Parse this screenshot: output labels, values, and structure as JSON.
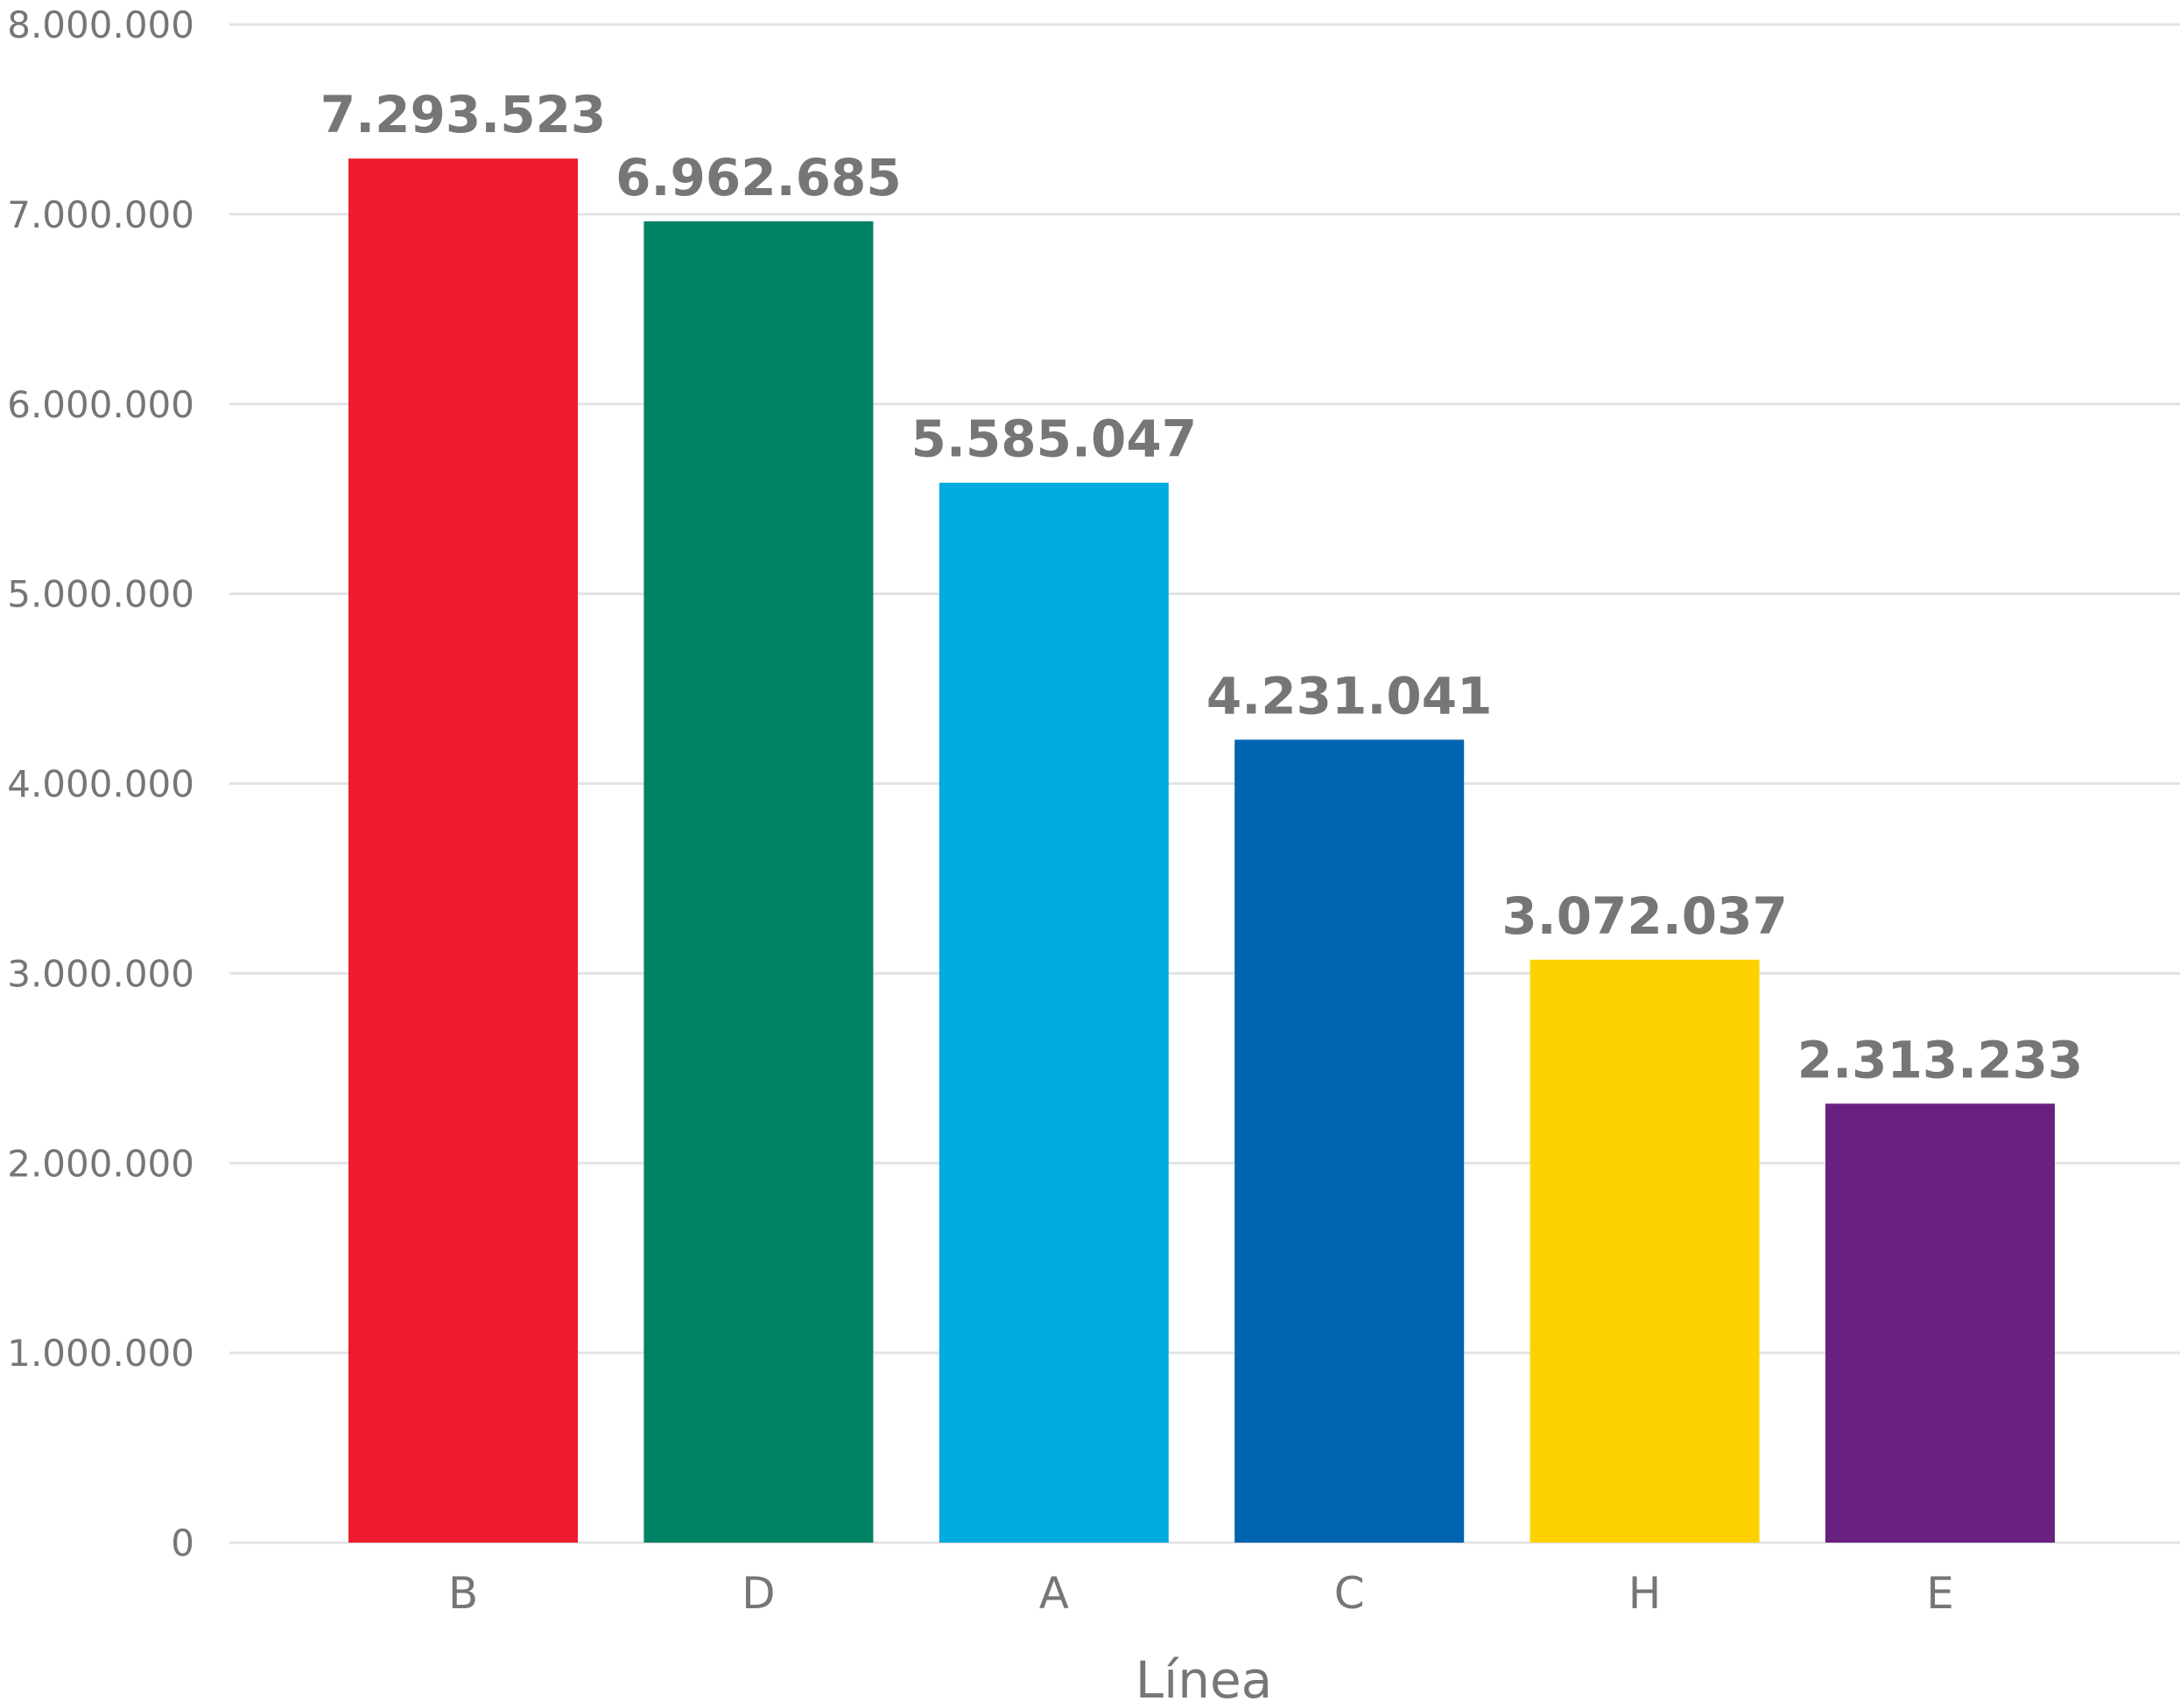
{
  "chart_data": {
    "type": "bar",
    "title": "",
    "xlabel": "Línea",
    "ylabel": "",
    "categories": [
      "B",
      "D",
      "A",
      "C",
      "H",
      "E"
    ],
    "values": [
      7293523,
      6962685,
      5585047,
      4231041,
      3072037,
      2313233
    ],
    "value_labels": [
      "7.293.523",
      "6.962.685",
      "5.585.047",
      "4.231.041",
      "3.072.037",
      "2.313.233"
    ],
    "colors": [
      "#ee1b2e",
      "#008264",
      "#00abdf",
      "#0063b0",
      "#fdd100",
      "#6a2081"
    ],
    "ylim": [
      0,
      8000000
    ],
    "yticks": [
      0,
      1000000,
      2000000,
      3000000,
      4000000,
      5000000,
      6000000,
      7000000,
      8000000
    ],
    "ytick_labels": [
      "0",
      "1.000.000",
      "2.000.000",
      "3.000.000",
      "4.000.000",
      "5.000.000",
      "6.000.000",
      "7.000.000",
      "8.000.000"
    ],
    "grid": true,
    "legend": "none"
  }
}
